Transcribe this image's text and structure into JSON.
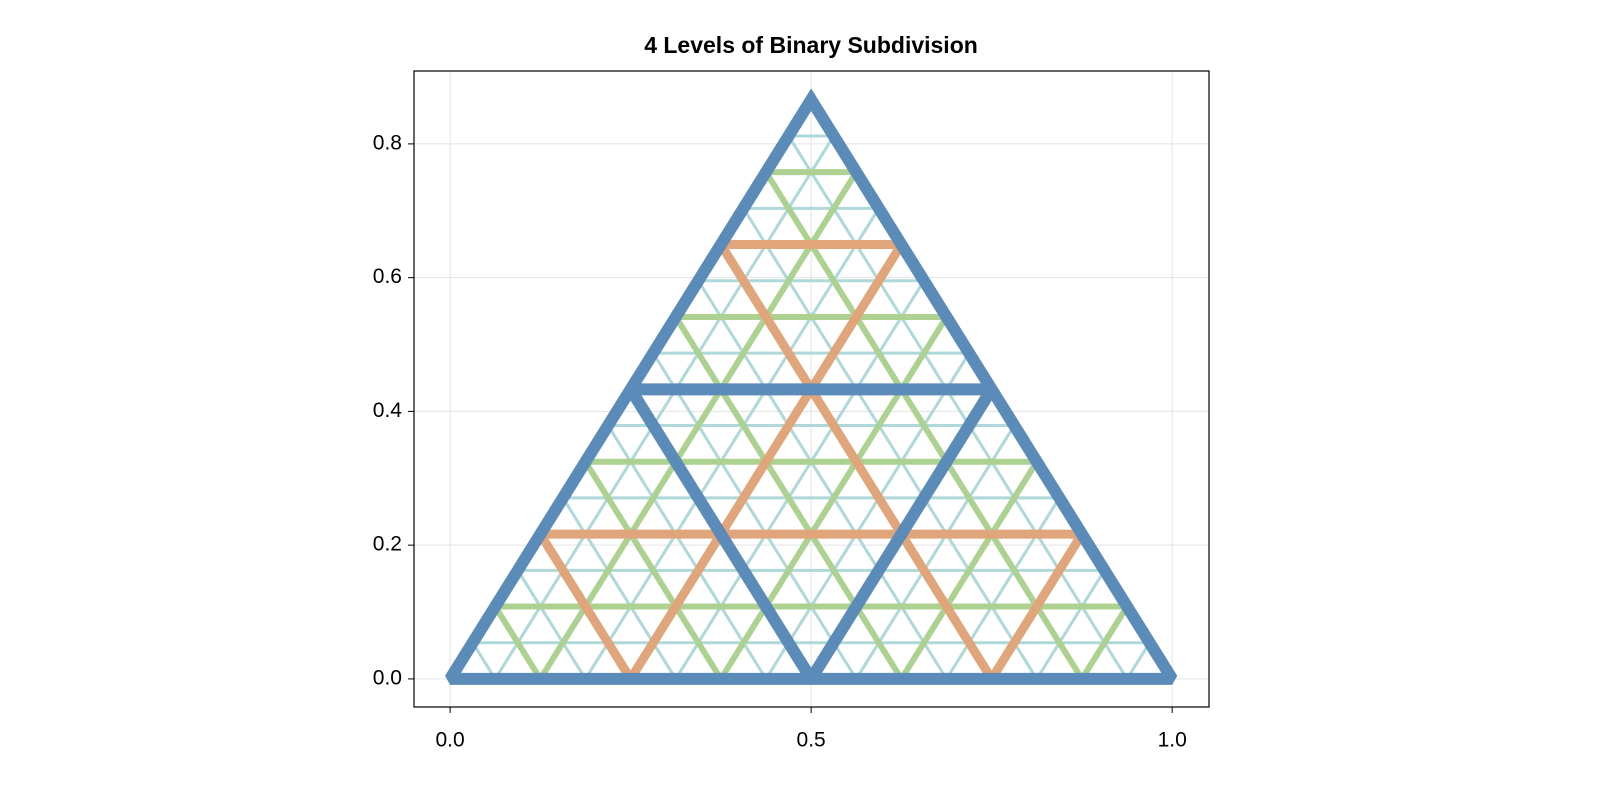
{
  "chart_data": {
    "type": "triangle_subdivision",
    "title": "4 Levels of Binary Subdivision",
    "x": [
      0,
      1,
      0.5
    ],
    "y": [
      0,
      0,
      0.866
    ],
    "levels": [
      {
        "divisions": 16,
        "color": "#aed8d9"
      },
      {
        "divisions": 8,
        "color": "#add191"
      },
      {
        "divisions": 4,
        "color": "#e0a57a"
      },
      {
        "divisions": 2,
        "color": "#5b8bb8"
      }
    ],
    "xlim": [
      -0.05,
      1.051
    ],
    "ylim": [
      -0.042,
      0.909
    ],
    "xticks": [
      {
        "value": 0,
        "label": "0.0"
      },
      {
        "value": 0.5,
        "label": "0.5"
      },
      {
        "value": 1,
        "label": "1.0"
      }
    ],
    "yticks": [
      {
        "value": 0,
        "label": "0.0"
      },
      {
        "value": 0.2,
        "label": "0.2"
      },
      {
        "value": 0.4,
        "label": "0.4"
      },
      {
        "value": 0.6,
        "label": "0.6"
      },
      {
        "value": 0.8,
        "label": "0.8"
      }
    ],
    "grid": true
  }
}
